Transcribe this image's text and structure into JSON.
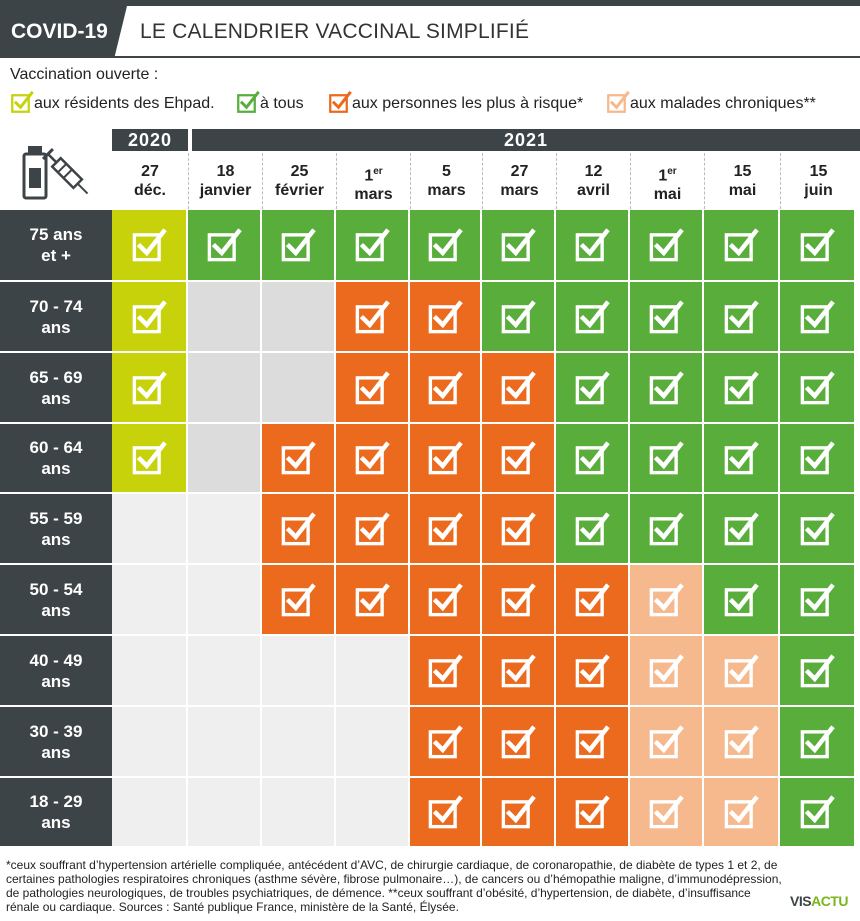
{
  "header": {
    "tag": "COVID-19",
    "title": "LE CALENDRIER VACCINAL SIMPLIFIÉ"
  },
  "legend": {
    "title": "Vaccination ouverte :",
    "items": [
      {
        "label": "aux résidents des Ehpad.",
        "color": "#c8d20a",
        "key": "Y"
      },
      {
        "label": "à tous",
        "color": "#58ad3b",
        "key": "G"
      },
      {
        "label": "aux personnes les plus à risque*",
        "color": "#eb6a1d",
        "key": "O"
      },
      {
        "label": "aux malades chroniques**",
        "color": "#f6b88d",
        "key": "P"
      }
    ]
  },
  "years": {
    "y2020": "2020",
    "y2021": "2021"
  },
  "dates": [
    {
      "day": "27",
      "sup": "",
      "month": "déc."
    },
    {
      "day": "18",
      "sup": "",
      "month": "janvier"
    },
    {
      "day": "25",
      "sup": "",
      "month": "février"
    },
    {
      "day": "1",
      "sup": "er",
      "month": "mars"
    },
    {
      "day": "5",
      "sup": "",
      "month": "mars"
    },
    {
      "day": "27",
      "sup": "",
      "month": "mars"
    },
    {
      "day": "12",
      "sup": "",
      "month": "avril"
    },
    {
      "day": "1",
      "sup": "er",
      "month": "mai"
    },
    {
      "day": "15",
      "sup": "",
      "month": "mai"
    },
    {
      "day": "15",
      "sup": "",
      "month": "juin"
    }
  ],
  "rows": [
    {
      "l1": "75 ans",
      "l2": "et +",
      "cells": "YGGGGGGGGG"
    },
    {
      "l1": "70 - 74",
      "l2": "ans",
      "cells": "Y--OOGGGGG"
    },
    {
      "l1": "65 - 69",
      "l2": "ans",
      "cells": "Y--OOOGGGG"
    },
    {
      "l1": "60 - 64",
      "l2": "ans",
      "cells": "Y-OOOOGGGG"
    },
    {
      "l1": "55 - 59",
      "l2": "ans",
      "cells": "--OOOOGGGG"
    },
    {
      "l1": "50 - 54",
      "l2": "ans",
      "cells": "--OOOOOPGG"
    },
    {
      "l1": "40 - 49",
      "l2": "ans",
      "cells": "----OOOPPG"
    },
    {
      "l1": "30 - 39",
      "l2": "ans",
      "cells": "----OOOPPG"
    },
    {
      "l1": "18 - 29",
      "l2": "ans",
      "cells": "----OOOPPG"
    }
  ],
  "colors": {
    "empty_light": "#efefef",
    "empty_dark": "#dcdcdc",
    "dark": "#3d4447"
  },
  "footer": {
    "text": "*ceux souffrant d’hypertension artérielle compliquée, antécédent d’AVC, de chirurgie cardiaque, de coronaropathie, de diabète de types 1 et 2, de certaines pathologies respiratoires chroniques (asthme sévère, fibrose pulmonaire…), de cancers ou d’hémopathie maligne, d’immunodépression, de pathologies neurologiques, de troubles psychiatriques, de démence. **ceux souffrant d’obésité, d’hypertension, de diabète, d’insuffisance rénale ou cardiaque. Sources : Santé publique France, ministère de la Santé, Élysée."
  },
  "logo": {
    "a": "VIS",
    "b": "ACTU"
  }
}
